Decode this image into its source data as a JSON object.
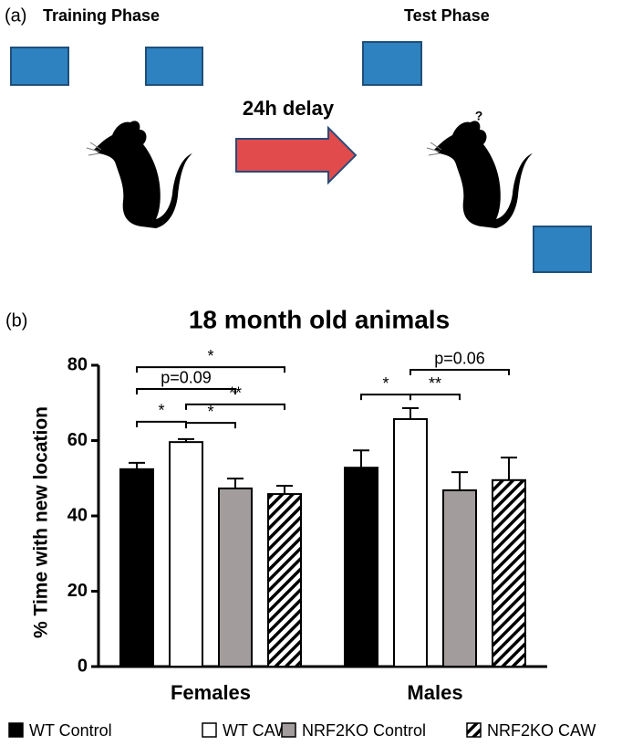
{
  "panel_a": {
    "label": "(a)",
    "training": "Training Phase",
    "test": "Test Phase",
    "delay": "24h delay",
    "question": "?"
  },
  "panel_b_label": "(b)",
  "chart_data": {
    "type": "bar",
    "title": "18 month old animals",
    "y_label": "% Time with new location",
    "categories": [
      "Females",
      "Males"
    ],
    "series": [
      {
        "name": "WT Control",
        "color": "#000000",
        "values": [
          52.4,
          52.8
        ],
        "errors": [
          1.7,
          4.6
        ]
      },
      {
        "name": "WT CAW",
        "color": "#ffffff",
        "values": [
          59.6,
          65.7
        ],
        "errors": [
          0.8,
          2.9
        ]
      },
      {
        "name": "NRF2KO Control",
        "color": "#a29c9c",
        "values": [
          47.3,
          46.8
        ],
        "errors": [
          2.6,
          4.8
        ]
      },
      {
        "name": "NRF2KO CAW",
        "color": "#000000",
        "hatch": true,
        "values": [
          45.8,
          49.5
        ],
        "errors": [
          2.2,
          6
        ]
      }
    ],
    "ylim": [
      0,
      80
    ],
    "yticks": [
      0,
      20,
      40,
      60,
      80
    ],
    "annotations": [
      {
        "category": 0,
        "from": 0,
        "to": 3,
        "y": 79.5,
        "label": "*"
      },
      {
        "category": 0,
        "from": 0,
        "to": 2,
        "y": 73.7,
        "label": "p=0.09"
      },
      {
        "category": 0,
        "from": 1,
        "to": 3,
        "y": 69.6,
        "label": "**"
      },
      {
        "category": 0,
        "from": 0,
        "to": 1,
        "y": 65,
        "label": "*"
      },
      {
        "category": 0,
        "from": 1,
        "to": 2,
        "y": 64.7,
        "label": "*"
      },
      {
        "category": 1,
        "from": 0,
        "to": 1,
        "y": 72.2,
        "label": "*"
      },
      {
        "category": 1,
        "from": 1,
        "to": 2,
        "y": 72.2,
        "label": "**"
      },
      {
        "category": 1,
        "from": 1,
        "to": 3,
        "y": 78.8,
        "label": "p=0.06"
      }
    ]
  }
}
